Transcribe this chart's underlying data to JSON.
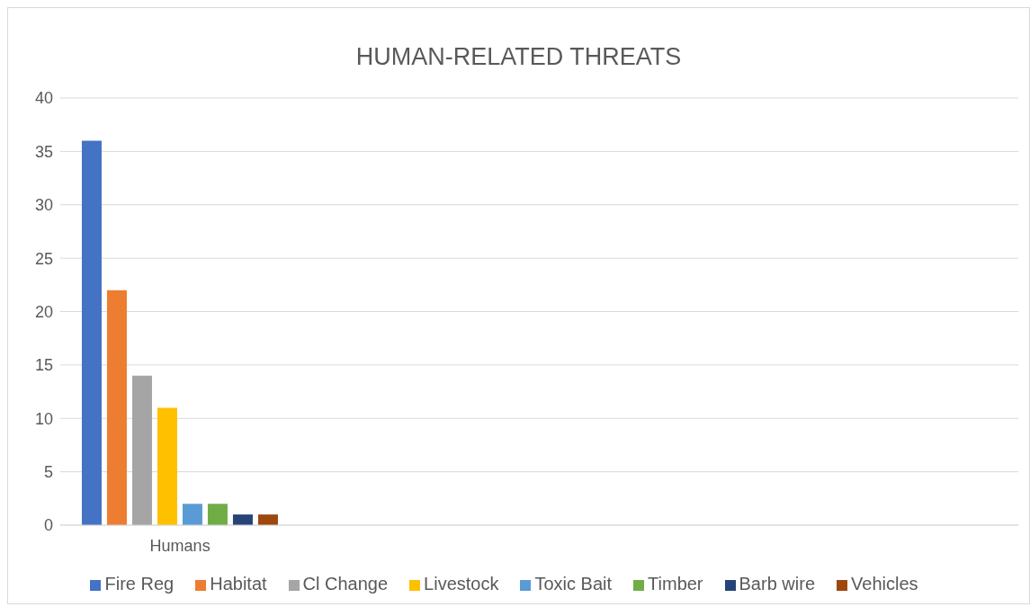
{
  "chart_data": {
    "type": "bar",
    "title": "HUMAN-RELATED THREATS",
    "categories": [
      "Humans",
      null,
      null,
      null
    ],
    "series": [
      {
        "name": "Fire Reg",
        "color": "#4472c4",
        "values": [
          36,
          null,
          null,
          null
        ]
      },
      {
        "name": "Habitat",
        "color": "#ed7d31",
        "values": [
          22,
          null,
          null,
          null
        ]
      },
      {
        "name": "Cl Change",
        "color": "#a5a5a5",
        "values": [
          14,
          null,
          null,
          null
        ]
      },
      {
        "name": "Livestock",
        "color": "#ffc000",
        "values": [
          11,
          null,
          null,
          null
        ]
      },
      {
        "name": "Toxic Bait",
        "color": "#5b9bd5",
        "values": [
          2,
          null,
          null,
          null
        ]
      },
      {
        "name": "Timber",
        "color": "#70ad47",
        "values": [
          2,
          null,
          null,
          null
        ]
      },
      {
        "name": "Barb wire",
        "color": "#264478",
        "values": [
          1,
          null,
          null,
          null
        ]
      },
      {
        "name": "Vehicles",
        "color": "#9e480e",
        "values": [
          1,
          null,
          null,
          null
        ]
      }
    ],
    "ylim": [
      0,
      40
    ],
    "yticks": [
      0,
      5,
      10,
      15,
      20,
      25,
      30,
      35,
      40
    ],
    "grid": "y",
    "legend": "bottom"
  }
}
